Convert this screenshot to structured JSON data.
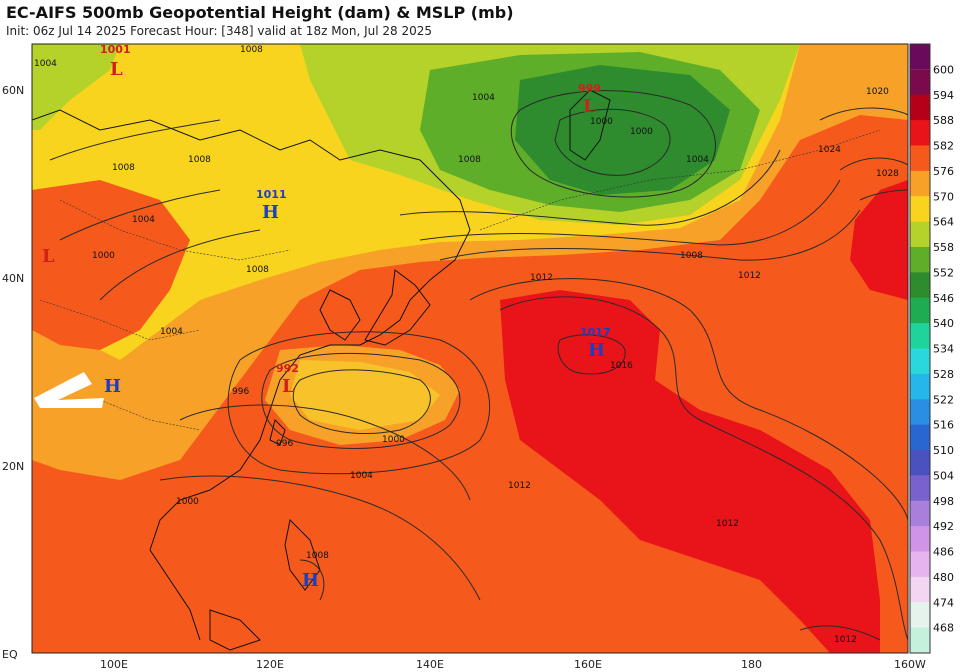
{
  "header": {
    "title": "EC-AIFS 500mb Geopotential Height (dam) & MSLP (mb)",
    "subtitle": "Init: 06z Jul 14 2025   Forecast Hour: [348]   valid at 18z Mon, Jul 28 2025"
  },
  "axes": {
    "lat_labels": [
      "60N",
      "40N",
      "20N",
      "EQ"
    ],
    "lon_labels": [
      "100E",
      "120E",
      "140E",
      "160E",
      "180",
      "160W"
    ]
  },
  "colorbar": {
    "levels": [
      "600",
      "594",
      "588",
      "582",
      "576",
      "570",
      "564",
      "558",
      "552",
      "546",
      "540",
      "534",
      "528",
      "522",
      "516",
      "510",
      "504",
      "498",
      "492",
      "486",
      "480",
      "474",
      "468"
    ],
    "colors": [
      "#7a0a4a",
      "#b5001a",
      "#e8141a",
      "#f55a1c",
      "#f7a128",
      "#f8d41e",
      "#b5d22a",
      "#5fae2a",
      "#2e8c2e",
      "#1fab52",
      "#1ed49a",
      "#2ad8dc",
      "#25b6ea",
      "#2a8fe0",
      "#2a66d0",
      "#4a52c0",
      "#7a62cc",
      "#a880dc",
      "#d094e6",
      "#e6b4ee",
      "#f2d6f2",
      "#e6f2ec",
      "#c4f0dc"
    ]
  },
  "pressure_centers": [
    {
      "type": "L",
      "value": "1001"
    },
    {
      "type": "L",
      "value": "999"
    },
    {
      "type": "H",
      "value": "1011"
    },
    {
      "type": "H",
      "value": "1017"
    },
    {
      "type": "L",
      "value": "992"
    },
    {
      "type": "H",
      "value": ""
    },
    {
      "type": "H",
      "value": ""
    },
    {
      "type": "L",
      "value": ""
    }
  ],
  "isobar_labels": [
    "1004",
    "1008",
    "1004",
    "1008",
    "1000",
    "1004",
    "1008",
    "1012",
    "1020",
    "1024",
    "1028",
    "1012",
    "1016",
    "1012",
    "1012",
    "1000",
    "996",
    "996",
    "1000",
    "1004",
    "1008",
    "1000",
    "1004",
    "1008",
    "1008",
    "1012",
    "1008",
    "1000",
    "1004"
  ],
  "colors": {
    "land_outline": "#111111",
    "isobar": "#2a2a2a",
    "high_marker": "#1a3fc4",
    "low_marker": "#d0201a"
  }
}
